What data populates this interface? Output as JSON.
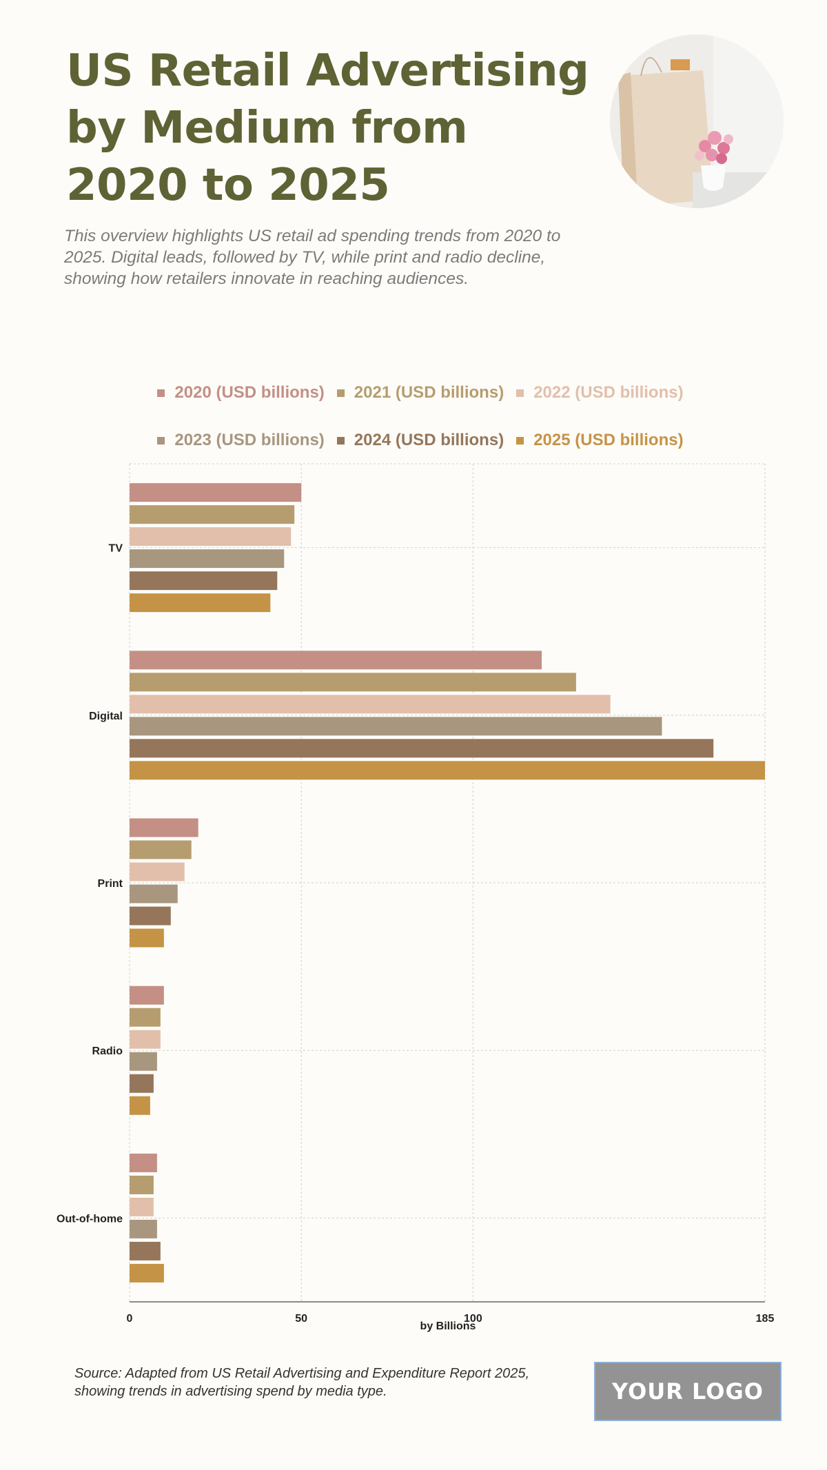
{
  "header": {
    "title": "US Retail Advertising by Medium from 2020 to 2025",
    "subtitle": "This overview highlights US retail ad spending trends from 2020 to 2025. Digital leads, followed by TV, while print and radio decline, showing how retailers innovate in reaching audiences.",
    "hero_image": "shopping-bag-with-flowers-photo"
  },
  "footer": {
    "source": "Source: Adapted from US Retail Advertising and Expenditure Report 2025, showing trends in advertising spend by media type.",
    "logo_text": "YOUR LOGO"
  },
  "chart_data": {
    "type": "bar",
    "orientation": "horizontal",
    "title": "US Retail Advertising by Medium from 2020 to 2025",
    "xlabel": "by Billions",
    "ylabel": "",
    "xlim": [
      0,
      185
    ],
    "x_ticks": [
      0,
      50,
      100,
      185
    ],
    "grid": true,
    "legend_position": "top",
    "categories": [
      "TV",
      "Digital",
      "Print",
      "Radio",
      "Out-of-home"
    ],
    "series": [
      {
        "name": "2020 (USD billions)",
        "color": "#c48f85",
        "values": [
          50,
          120,
          20,
          10,
          8
        ]
      },
      {
        "name": "2021 (USD billions)",
        "color": "#b59d6f",
        "values": [
          48,
          130,
          18,
          9,
          7
        ]
      },
      {
        "name": "2022 (USD billions)",
        "color": "#e2bfab",
        "values": [
          47,
          140,
          16,
          9,
          7
        ]
      },
      {
        "name": "2023 (USD billions)",
        "color": "#a8967f",
        "values": [
          45,
          155,
          14,
          8,
          8
        ]
      },
      {
        "name": "2024 (USD billions)",
        "color": "#95765a",
        "values": [
          43,
          170,
          12,
          7,
          9
        ]
      },
      {
        "name": "2025 (USD billions)",
        "color": "#c59346",
        "values": [
          41,
          185,
          10,
          6,
          10
        ]
      }
    ]
  }
}
